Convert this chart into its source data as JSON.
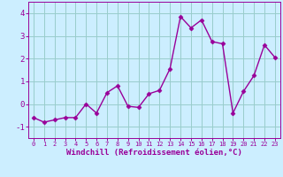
{
  "x": [
    0,
    1,
    2,
    3,
    4,
    5,
    6,
    7,
    8,
    9,
    10,
    11,
    12,
    13,
    14,
    15,
    16,
    17,
    18,
    19,
    20,
    21,
    22,
    23
  ],
  "y": [
    -0.6,
    -0.8,
    -0.7,
    -0.6,
    -0.6,
    0.0,
    -0.4,
    0.5,
    0.8,
    -0.1,
    -0.15,
    0.45,
    0.6,
    1.55,
    3.85,
    3.35,
    3.7,
    2.75,
    2.65,
    -0.4,
    0.55,
    1.25,
    2.6,
    2.05
  ],
  "line_color": "#990099",
  "marker": "D",
  "markersize": 2.5,
  "linewidth": 1.0,
  "bg_color": "#cceeff",
  "grid_color": "#99cccc",
  "xlabel": "Windchill (Refroidissement éolien,°C)",
  "xlabel_fontsize": 6.5,
  "xtick_fontsize": 5.0,
  "ytick_fontsize": 6.5,
  "ylim": [
    -1.5,
    4.5
  ],
  "xlim": [
    -0.5,
    23.5
  ],
  "yticks": [
    -1,
    0,
    1,
    2,
    3,
    4
  ],
  "xticks": [
    0,
    1,
    2,
    3,
    4,
    5,
    6,
    7,
    8,
    9,
    10,
    11,
    12,
    13,
    14,
    15,
    16,
    17,
    18,
    19,
    20,
    21,
    22,
    23
  ]
}
